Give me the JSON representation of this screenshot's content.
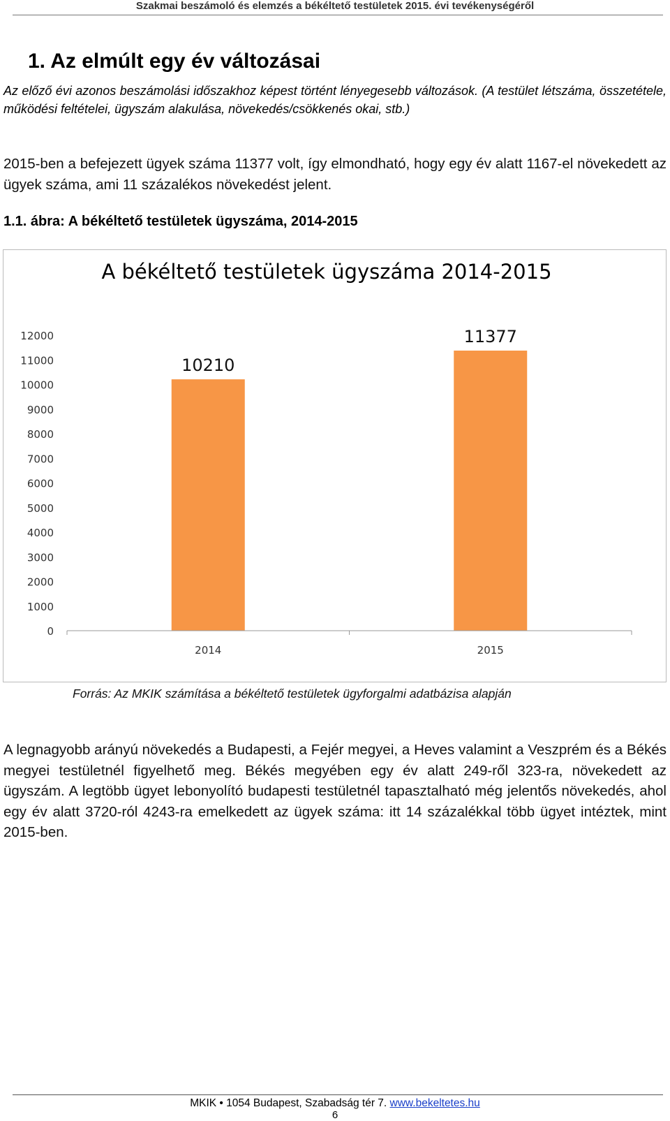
{
  "header": {
    "title": "Szakmai beszámoló és elemzés a békéltető testületek 2015. évi tevékenységéről"
  },
  "section": {
    "heading": "1. Az elmúlt egy év változásai",
    "intro": "Az előző évi azonos beszámolási időszakhoz képest történt lényegesebb változások. (A testület létszáma, összetétele, működési feltételei, ügyszám alakulása, növekedés/csökkenés okai, stb.)",
    "paragraph_1": "2015-ben a befejezett ügyek száma 11377 volt, így elmondható, hogy egy év alatt 1167-el növekedett az ügyek száma, ami 11 százalékos növekedést jelent.",
    "figure_caption": "1.1. ábra: A békéltető testületek ügyszáma, 2014-2015",
    "source_note": "Forrás: Az MKIK számítása a békéltető testületek ügyforgalmi adatbázisa alapján",
    "paragraph_2": "A legnagyobb arányú növekedés a Budapesti, a Fejér megyei, a Heves valamint a Veszprém és a Békés megyei testületnél figyelhető meg. Békés megyében egy év alatt 249-ről 323-ra, növekedett az ügyszám. A legtöbb ügyet lebonyolító budapesti testületnél tapasztalható még jelentős növekedés, ahol egy év alatt 3720-ról 4243-ra emelkedett az ügyek száma: itt 14 százalékkal több ügyet intéztek, mint 2015-ben."
  },
  "chart_data": {
    "type": "bar",
    "title": "A békéltető testületek ügyszáma 2014-2015",
    "categories": [
      "2014",
      "2015"
    ],
    "values": [
      10210,
      11377
    ],
    "data_labels": [
      "10210",
      "11377"
    ],
    "xlabel": "",
    "ylabel": "",
    "ylim": [
      0,
      12000
    ],
    "yticks": [
      "0",
      "1000",
      "2000",
      "3000",
      "4000",
      "5000",
      "6000",
      "7000",
      "8000",
      "9000",
      "10000",
      "11000",
      "12000"
    ],
    "bar_color": "#F79646",
    "grid": false,
    "legend": "none"
  },
  "footer": {
    "address": "MKIK • 1054 Budapest, Szabadság tér 7.",
    "link": "www.bekeltetes.hu",
    "page_number": "6"
  }
}
